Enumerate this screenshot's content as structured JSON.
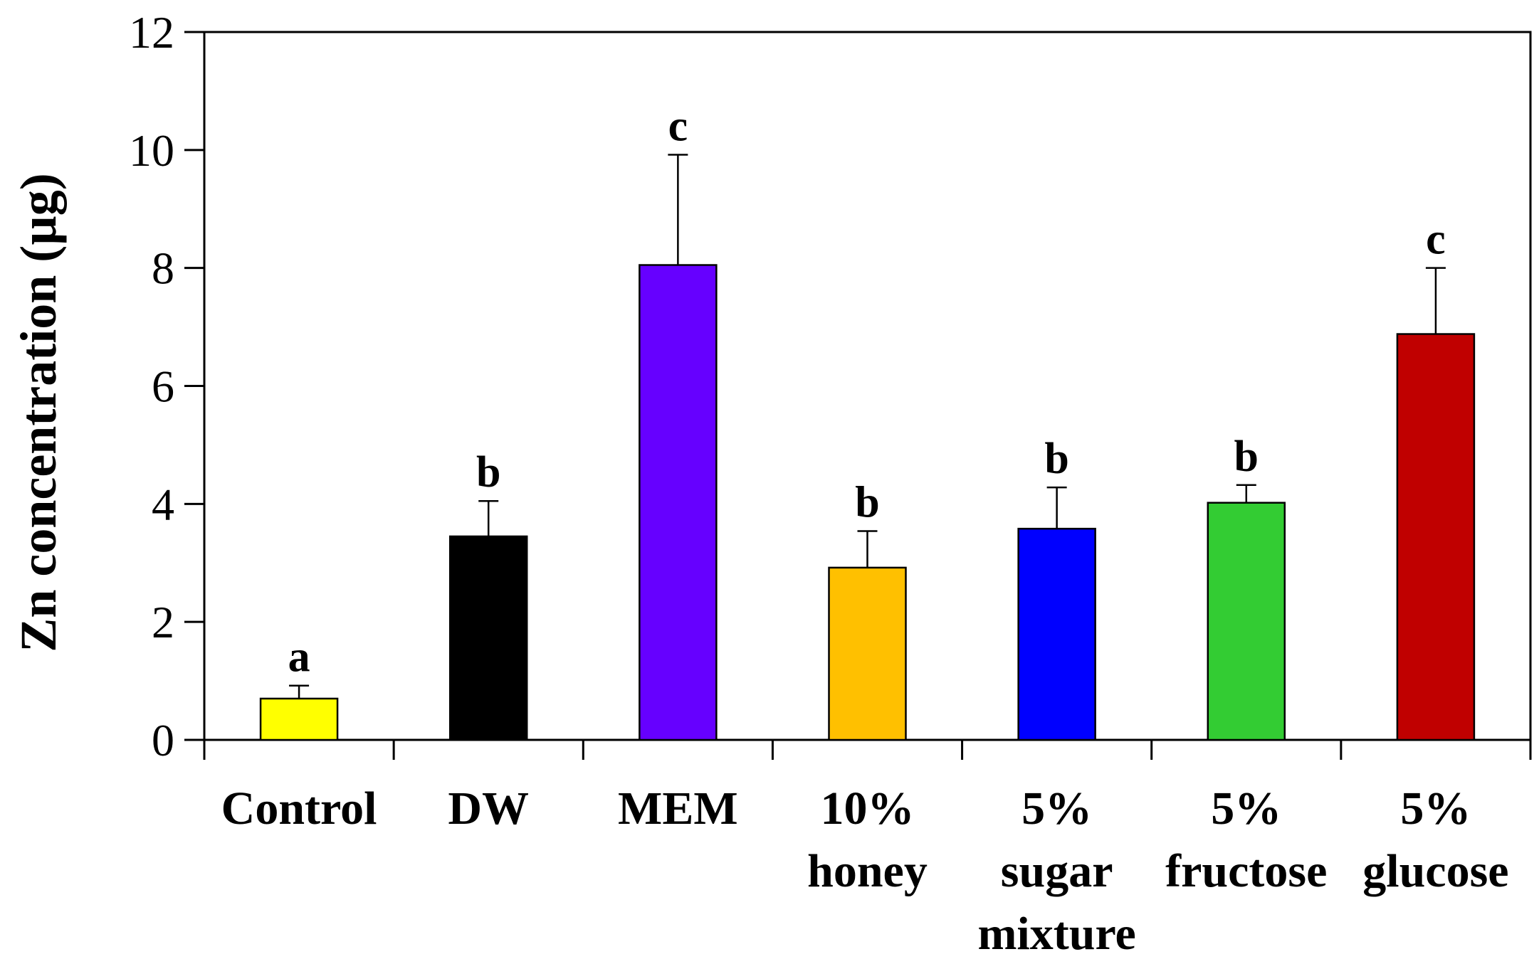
{
  "chart_data": {
    "type": "bar",
    "title": "",
    "xlabel": "",
    "ylabel": "Zn concentration (µg)",
    "ylim": [
      0,
      12
    ],
    "yticks": [
      "0",
      "2",
      "4",
      "6",
      "8",
      "10",
      "12"
    ],
    "grid": false,
    "categories": [
      [
        "Control"
      ],
      [
        "DW"
      ],
      [
        "MEM"
      ],
      [
        "10%",
        "honey"
      ],
      [
        "5%",
        "sugar",
        "mixture"
      ],
      [
        "5%",
        "fructose"
      ],
      [
        "5%",
        "glucose"
      ]
    ],
    "values": [
      0.7,
      3.45,
      8.05,
      2.92,
      3.58,
      4.02,
      6.88
    ],
    "errors": [
      0.22,
      0.6,
      1.87,
      0.62,
      0.7,
      0.3,
      1.12
    ],
    "significance": [
      "a",
      "b",
      "c",
      "b",
      "b",
      "b",
      "c"
    ],
    "colors": [
      "#FFFF00",
      "#000000",
      "#6600FF",
      "#FFC000",
      "#0000FF",
      "#33CC33",
      "#C00000"
    ]
  }
}
